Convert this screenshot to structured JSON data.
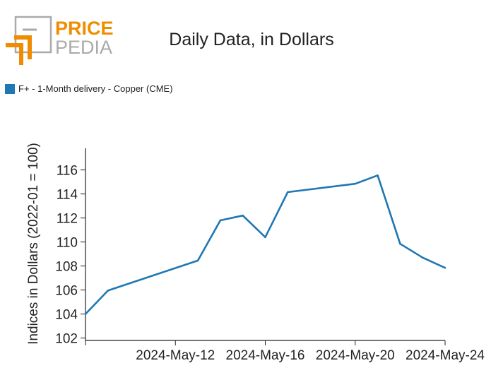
{
  "logo": {
    "word_top": "PRICE",
    "word_bottom": "PEDIA",
    "accent_color": "#f08c00",
    "gray_color": "#aaaaaa"
  },
  "chart_data": {
    "type": "line",
    "title": "Daily Data, in Dollars",
    "xlabel": "",
    "ylabel": "Indices in Dollars (2022-01 = 100)",
    "legend": "top-left",
    "grid": false,
    "series": [
      {
        "name": "F+ - 1-Month delivery - Copper (CME)",
        "color": "#1f77b4",
        "points": [
          {
            "date": "2024-May-08",
            "value": 104.0
          },
          {
            "date": "2024-May-09",
            "value": 105.95
          },
          {
            "date": "2024-May-13",
            "value": 108.45
          },
          {
            "date": "2024-May-14",
            "value": 111.8
          },
          {
            "date": "2024-May-15",
            "value": 112.2
          },
          {
            "date": "2024-May-16",
            "value": 110.4
          },
          {
            "date": "2024-May-17",
            "value": 114.15
          },
          {
            "date": "2024-May-20",
            "value": 114.85
          },
          {
            "date": "2024-May-21",
            "value": 115.55
          },
          {
            "date": "2024-May-22",
            "value": 109.85
          },
          {
            "date": "2024-May-23",
            "value": 108.7
          },
          {
            "date": "2024-May-24",
            "value": 107.85
          }
        ]
      }
    ],
    "xlim": [
      "2024-May-08",
      "2024-May-24"
    ],
    "ylim": [
      101.8,
      117.8
    ],
    "xticks": [
      "2024-May-12",
      "2024-May-16",
      "2024-May-20",
      "2024-May-24"
    ],
    "yticks": [
      102,
      104,
      106,
      108,
      110,
      112,
      114,
      116
    ]
  }
}
